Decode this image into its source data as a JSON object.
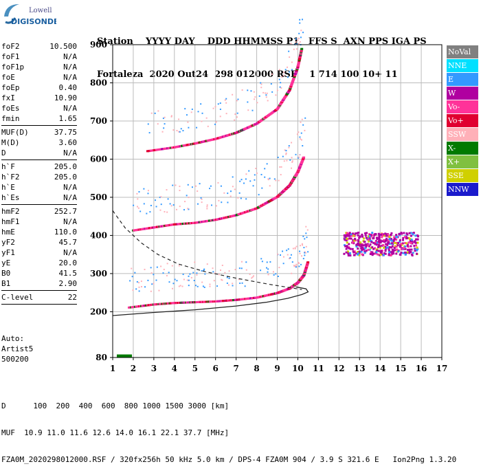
{
  "logo": {
    "top": "Lowell",
    "bottom": "DIGISONDE"
  },
  "header": {
    "columns": "Station    YYYY DAY    DDD HHMMSS P1   FFS S  AXN PPS IGA PS",
    "values": "Fortaleza  2020 Out24  298 012000 RSF    1 714 100 10+ 11"
  },
  "params": [
    {
      "name": "foF2",
      "value": "10.500"
    },
    {
      "name": "foF1",
      "value": "N/A"
    },
    {
      "name": "foF1p",
      "value": "N/A"
    },
    {
      "name": "foE",
      "value": "N/A"
    },
    {
      "name": "foEp",
      "value": "0.40"
    },
    {
      "name": "fxI",
      "value": "10.90"
    },
    {
      "name": "foEs",
      "value": "N/A"
    },
    {
      "name": "fmin",
      "value": "1.65"
    },
    {
      "sep": true
    },
    {
      "name": "MUF(D)",
      "value": "37.75"
    },
    {
      "name": "M(D)",
      "value": "3.60"
    },
    {
      "name": "D",
      "value": "N/A"
    },
    {
      "sep": true
    },
    {
      "name": "h`F",
      "value": "205.0"
    },
    {
      "name": "h`F2",
      "value": "205.0"
    },
    {
      "name": "h`E",
      "value": "N/A"
    },
    {
      "name": "h`Es",
      "value": "N/A"
    },
    {
      "sep": true
    },
    {
      "name": "hmF2",
      "value": "252.7"
    },
    {
      "name": "hmF1",
      "value": "N/A"
    },
    {
      "name": "hmE",
      "value": "110.0"
    },
    {
      "name": "yF2",
      "value": "45.7"
    },
    {
      "name": "yF1",
      "value": "N/A"
    },
    {
      "name": "yE",
      "value": "20.0"
    },
    {
      "name": "B0",
      "value": "41.5"
    },
    {
      "name": "B1",
      "value": "2.90"
    },
    {
      "sep": true
    },
    {
      "name": "C-level",
      "value": "22"
    },
    {
      "sep": true
    }
  ],
  "auto": {
    "line1": "Auto:",
    "line2": "Artist5",
    "line3": "500200"
  },
  "legend": [
    {
      "label": "NoVal",
      "bg": "#808080",
      "fg": "#ffffff"
    },
    {
      "label": "NNE",
      "bg": "#00e0ff",
      "fg": "#ffffff"
    },
    {
      "label": "E",
      "bg": "#3399ff",
      "fg": "#ffffff"
    },
    {
      "label": "W",
      "bg": "#b000a0",
      "fg": "#ffffff"
    },
    {
      "label": "Vo-",
      "bg": "#ff3399",
      "fg": "#ffffff"
    },
    {
      "label": "Vo+",
      "bg": "#e00030",
      "fg": "#ffffff"
    },
    {
      "label": "SSW",
      "bg": "#ffb0b8",
      "fg": "#ffffff"
    },
    {
      "label": "X-",
      "bg": "#007a00",
      "fg": "#ffffff"
    },
    {
      "label": "X+",
      "bg": "#80c040",
      "fg": "#ffffff"
    },
    {
      "label": "SSE",
      "bg": "#d0d000",
      "fg": "#ffffff"
    },
    {
      "label": "NNW",
      "bg": "#1a1acc",
      "fg": "#ffffff"
    }
  ],
  "footer": {
    "line1": "D      100  200  400  600  800 1000 1500 3000 [km]",
    "line2": "MUF  10.9 11.0 11.6 12.6 14.0 16.1 22.1 37.7 [MHz]",
    "line3": "FZA0M_2020298012000.RSF / 320fx256h 50 kHz 5.0 km / DPS-4 FZA0M 904 / 3.9 S 321.6 E   Ion2Png 1.3.20"
  },
  "chart_data": {
    "type": "scatter",
    "xlim": [
      1,
      17
    ],
    "ylim": [
      80,
      900
    ],
    "xticks": [
      "1",
      "2",
      "3",
      "4",
      "5",
      "6",
      "7",
      "8",
      "9",
      "10",
      "11",
      "12",
      "13",
      "14",
      "15",
      "16",
      "17"
    ],
    "yticks": [
      "80",
      "200",
      "300",
      "400",
      "500",
      "600",
      "700",
      "800",
      "900"
    ],
    "grid": true,
    "traces": [
      {
        "name": "F-trace",
        "color": "#ff3399",
        "x": [
          1.8,
          3,
          4,
          5,
          6,
          7,
          8,
          9,
          9.6,
          10,
          10.3,
          10.5
        ],
        "y": [
          210,
          218,
          222,
          224,
          226,
          230,
          236,
          248,
          260,
          275,
          295,
          330
        ]
      },
      {
        "name": "F-trace-2hop",
        "color": "#ff3399",
        "x": [
          2,
          3,
          4,
          5,
          6,
          7,
          8,
          9,
          9.6,
          10,
          10.3
        ],
        "y": [
          412,
          420,
          428,
          432,
          440,
          452,
          470,
          500,
          530,
          565,
          605
        ]
      },
      {
        "name": "F-trace-3hop",
        "color": "#ff3399",
        "x": [
          2.7,
          4,
          5,
          6,
          7,
          8,
          9,
          9.6,
          10,
          10.2
        ],
        "y": [
          620,
          630,
          640,
          652,
          668,
          692,
          730,
          780,
          840,
          890
        ]
      }
    ],
    "spread_x": [
      12.2,
      15.8
    ],
    "spread_y": [
      350,
      410
    ],
    "profile_solid": {
      "x": [
        1.0,
        3,
        5,
        7,
        8.5,
        9.5,
        10.2,
        10.5,
        10.4,
        9.9
      ],
      "y": [
        190,
        198,
        205,
        215,
        225,
        235,
        245,
        252,
        260,
        265
      ]
    },
    "profile_dashed": {
      "x": [
        1.0,
        1.6,
        2.4,
        3.2,
        4.2,
        5.5,
        7,
        8.6,
        10.2
      ],
      "y": [
        465,
        420,
        380,
        350,
        325,
        305,
        288,
        272,
        258
      ]
    }
  }
}
